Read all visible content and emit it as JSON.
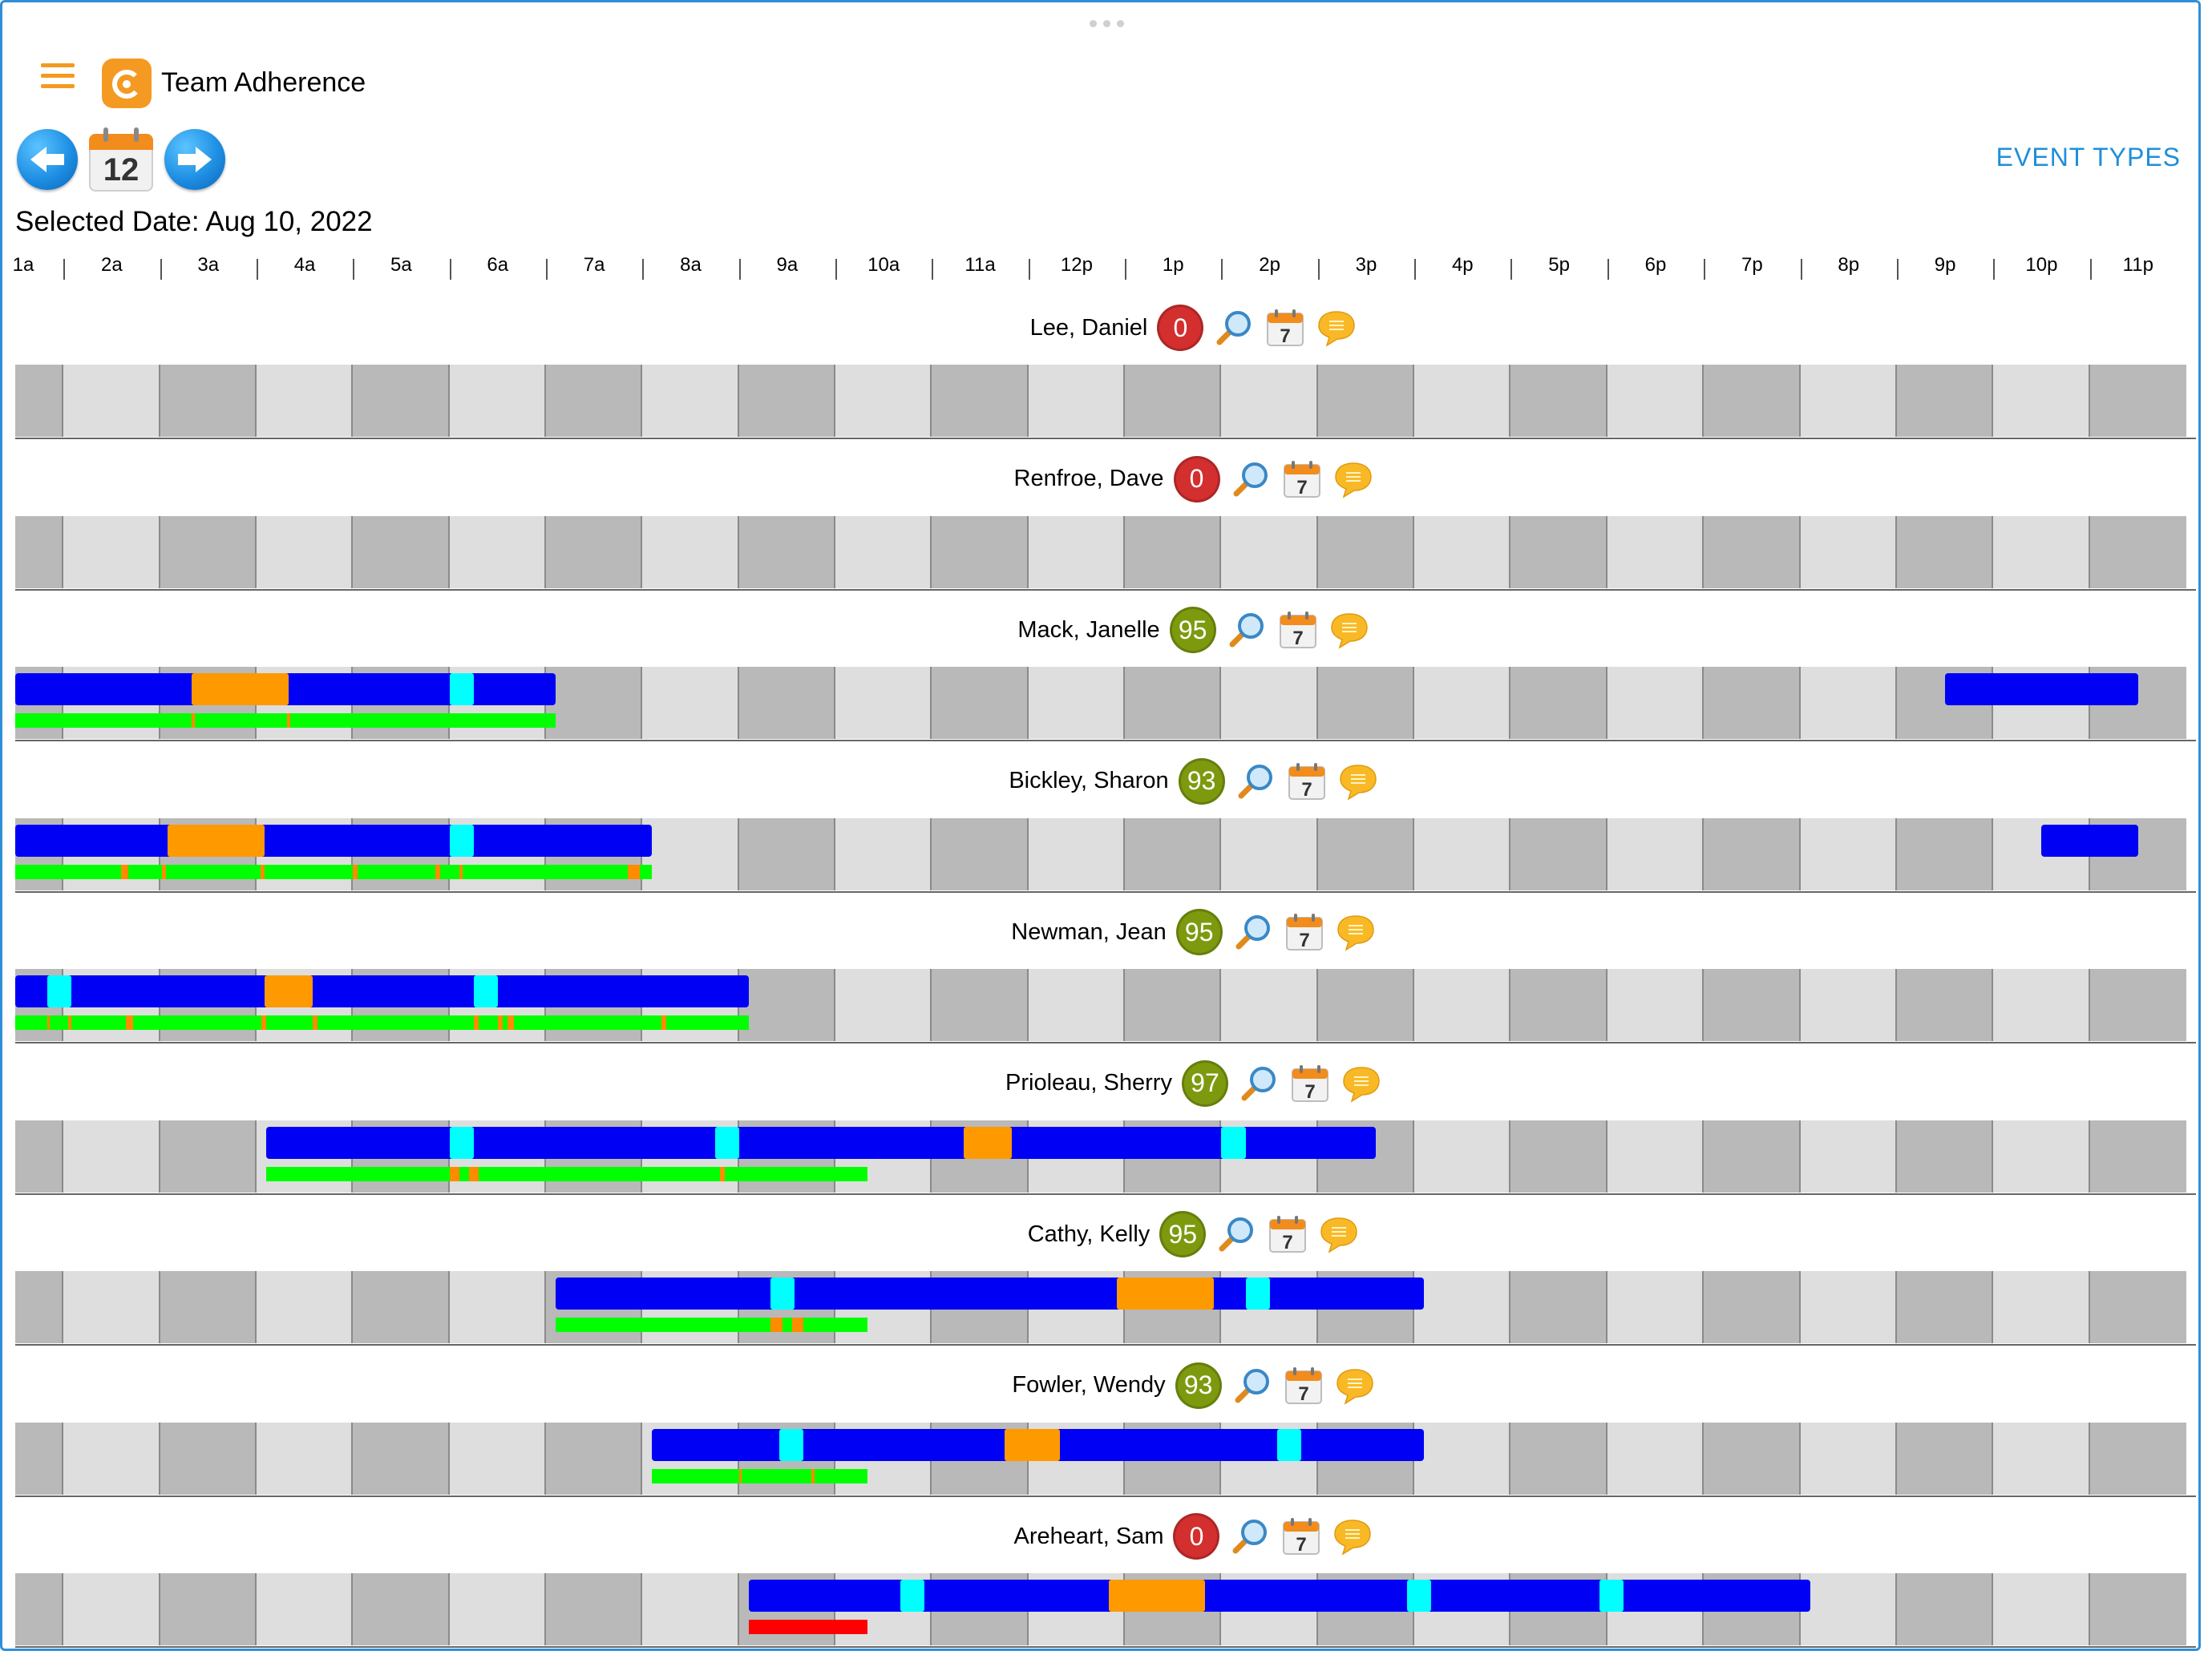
{
  "app": {
    "title": "Team Adherence",
    "nav_action": "EVENT TYPES",
    "calendar_day": "12"
  },
  "selected_date": "Selected Date: Aug 10, 2022",
  "hours": [
    "1a",
    "2a",
    "3a",
    "4a",
    "5a",
    "6a",
    "7a",
    "8a",
    "9a",
    "10a",
    "11a",
    "12p",
    "1p",
    "2p",
    "3p",
    "4p",
    "5p",
    "6p",
    "7p",
    "8p",
    "9p",
    "10p",
    "11p"
  ],
  "icons": {
    "menu": "hamburger-icon",
    "logo": "app-logo-icon",
    "prev": "arrow-left-icon",
    "next": "arrow-right-icon",
    "calendar": "calendar-icon",
    "zoom": "magnifier-icon",
    "schedule": "calendar-icon",
    "comment": "chat-bubble-icon"
  },
  "colors": {
    "work": "#0000f5",
    "break": "#ff9900",
    "short_break": "#00ffff",
    "adherent": "#00ff00",
    "out_of_adherence": "#ff8c00",
    "no_adherence": "#ff0000",
    "badge_good": "#7d9a0f",
    "badge_zero": "#d32f2f",
    "cell_dark": "#b9b9b9",
    "cell_light": "#dedede",
    "accent": "#1e8fd8",
    "brand": "#f49a22"
  },
  "agents": [
    {
      "name": "Lee, Daniel",
      "score": "0",
      "status": "zero",
      "schedule": [],
      "adherence": []
    },
    {
      "name": "Renfroe, Dave",
      "score": "0",
      "status": "zero",
      "schedule": [],
      "adherence": []
    },
    {
      "name": "Mack, Janelle",
      "score": "95",
      "status": "good",
      "schedule": [
        {
          "start": 0,
          "end": 5.6,
          "type": "work"
        },
        {
          "start": 1.83,
          "end": 2.83,
          "type": "break"
        },
        {
          "start": 4.5,
          "end": 4.75,
          "type": "short_break"
        },
        {
          "start": 20.0,
          "end": 22.0,
          "type": "work"
        }
      ],
      "adherence": [
        {
          "start": 0,
          "end": 5.6,
          "type": "adherent"
        },
        {
          "start": 1.83,
          "end": 1.86,
          "type": "out_of_adherence"
        },
        {
          "start": 2.82,
          "end": 2.85,
          "type": "out_of_adherence"
        }
      ]
    },
    {
      "name": "Bickley, Sharon",
      "score": "93",
      "status": "good",
      "schedule": [
        {
          "start": 0,
          "end": 6.6,
          "type": "work"
        },
        {
          "start": 1.58,
          "end": 2.58,
          "type": "break"
        },
        {
          "start": 4.5,
          "end": 4.75,
          "type": "short_break"
        },
        {
          "start": 21.0,
          "end": 22.0,
          "type": "work"
        }
      ],
      "adherence": [
        {
          "start": 0,
          "end": 6.6,
          "type": "adherent"
        },
        {
          "start": 1.1,
          "end": 1.17,
          "type": "out_of_adherence"
        },
        {
          "start": 1.52,
          "end": 1.56,
          "type": "out_of_adherence"
        },
        {
          "start": 2.54,
          "end": 2.58,
          "type": "out_of_adherence"
        },
        {
          "start": 3.5,
          "end": 3.55,
          "type": "out_of_adherence"
        },
        {
          "start": 4.35,
          "end": 4.4,
          "type": "out_of_adherence"
        },
        {
          "start": 4.6,
          "end": 4.64,
          "type": "out_of_adherence"
        },
        {
          "start": 6.35,
          "end": 6.47,
          "type": "out_of_adherence"
        }
      ]
    },
    {
      "name": "Newman, Jean",
      "score": "95",
      "status": "good",
      "schedule": [
        {
          "start": 0,
          "end": 7.6,
          "type": "work"
        },
        {
          "start": 0.33,
          "end": 0.58,
          "type": "short_break"
        },
        {
          "start": 2.58,
          "end": 3.08,
          "type": "break"
        },
        {
          "start": 4.75,
          "end": 5.0,
          "type": "short_break"
        }
      ],
      "adherence": [
        {
          "start": 0,
          "end": 7.6,
          "type": "adherent"
        },
        {
          "start": 0.33,
          "end": 0.36,
          "type": "out_of_adherence"
        },
        {
          "start": 0.55,
          "end": 0.58,
          "type": "out_of_adherence"
        },
        {
          "start": 1.15,
          "end": 1.22,
          "type": "out_of_adherence"
        },
        {
          "start": 2.55,
          "end": 2.6,
          "type": "out_of_adherence"
        },
        {
          "start": 3.08,
          "end": 3.13,
          "type": "out_of_adherence"
        },
        {
          "start": 4.75,
          "end": 4.8,
          "type": "out_of_adherence"
        },
        {
          "start": 5.0,
          "end": 5.05,
          "type": "out_of_adherence"
        },
        {
          "start": 5.1,
          "end": 5.17,
          "type": "out_of_adherence"
        },
        {
          "start": 6.7,
          "end": 6.75,
          "type": "out_of_adherence"
        }
      ]
    },
    {
      "name": "Prioleau, Sherry",
      "score": "97",
      "status": "good",
      "schedule": [
        {
          "start": 2.6,
          "end": 14.1,
          "type": "work"
        },
        {
          "start": 4.5,
          "end": 4.75,
          "type": "short_break"
        },
        {
          "start": 7.25,
          "end": 7.5,
          "type": "short_break"
        },
        {
          "start": 9.83,
          "end": 10.33,
          "type": "break"
        },
        {
          "start": 12.5,
          "end": 12.75,
          "type": "short_break"
        }
      ],
      "adherence": [
        {
          "start": 2.6,
          "end": 8.83,
          "type": "adherent"
        },
        {
          "start": 4.5,
          "end": 4.6,
          "type": "out_of_adherence"
        },
        {
          "start": 4.7,
          "end": 4.8,
          "type": "out_of_adherence"
        },
        {
          "start": 7.3,
          "end": 7.35,
          "type": "out_of_adherence"
        }
      ]
    },
    {
      "name": "Cathy, Kelly",
      "score": "95",
      "status": "good",
      "schedule": [
        {
          "start": 5.6,
          "end": 14.6,
          "type": "work"
        },
        {
          "start": 7.83,
          "end": 8.08,
          "type": "short_break"
        },
        {
          "start": 11.42,
          "end": 12.42,
          "type": "break"
        },
        {
          "start": 12.75,
          "end": 13.0,
          "type": "short_break"
        }
      ],
      "adherence": [
        {
          "start": 5.6,
          "end": 8.83,
          "type": "adherent"
        },
        {
          "start": 7.83,
          "end": 7.95,
          "type": "out_of_adherence"
        },
        {
          "start": 8.05,
          "end": 8.17,
          "type": "out_of_adherence"
        }
      ]
    },
    {
      "name": "Fowler, Wendy",
      "score": "93",
      "status": "good",
      "schedule": [
        {
          "start": 6.6,
          "end": 14.6,
          "type": "work"
        },
        {
          "start": 7.92,
          "end": 8.17,
          "type": "short_break"
        },
        {
          "start": 10.25,
          "end": 10.83,
          "type": "break"
        },
        {
          "start": 13.08,
          "end": 13.33,
          "type": "short_break"
        }
      ],
      "adherence": [
        {
          "start": 6.6,
          "end": 8.83,
          "type": "adherent"
        },
        {
          "start": 7.5,
          "end": 7.53,
          "type": "out_of_adherence"
        },
        {
          "start": 8.25,
          "end": 8.28,
          "type": "out_of_adherence"
        }
      ]
    },
    {
      "name": "Areheart, Sam",
      "score": "0",
      "status": "zero",
      "schedule": [
        {
          "start": 7.6,
          "end": 18.6,
          "type": "work"
        },
        {
          "start": 9.17,
          "end": 9.42,
          "type": "short_break"
        },
        {
          "start": 11.33,
          "end": 12.33,
          "type": "break"
        },
        {
          "start": 14.42,
          "end": 14.67,
          "type": "short_break"
        },
        {
          "start": 16.42,
          "end": 16.67,
          "type": "short_break"
        }
      ],
      "adherence": [
        {
          "start": 7.6,
          "end": 8.83,
          "type": "no_adherence"
        }
      ]
    }
  ]
}
